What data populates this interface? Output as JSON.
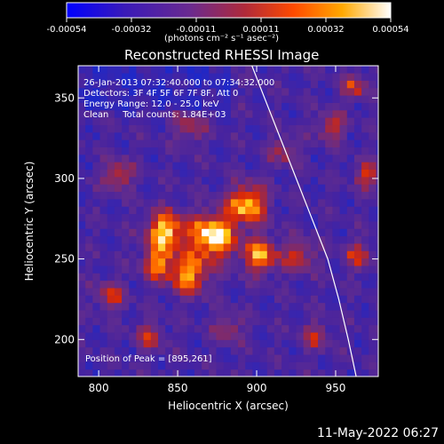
{
  "colorbar": {
    "tick_labels": [
      "-0.00054",
      "-0.00032",
      "-0.00011",
      "0.00011",
      "0.00032",
      "0.00054"
    ],
    "min": -0.00054,
    "max": 0.00054,
    "unit_label": "(photons cm⁻² s⁻¹ asec⁻²)",
    "colors": [
      "#0000ff",
      "#4a1aa0",
      "#7a2a8a",
      "#c0301a",
      "#ff6a00",
      "#ffc000",
      "#ffffff"
    ]
  },
  "chart_data": {
    "type": "heatmap",
    "title": "Reconstructed RHESSI Image",
    "xlabel": "Heliocentric X (arcsec)",
    "ylabel": "Heliocentric Y (arcsec)",
    "xlim": [
      787,
      977
    ],
    "ylim": [
      177,
      370
    ],
    "xticks": [
      800,
      850,
      900,
      950
    ],
    "yticks": [
      200,
      250,
      300,
      350
    ],
    "peak_position": [
      895,
      261
    ],
    "limb_curve": [
      [
        897,
        370
      ],
      [
        905,
        350
      ],
      [
        915,
        325
      ],
      [
        925,
        300
      ],
      [
        935,
        275
      ],
      [
        945,
        250
      ],
      [
        952,
        225
      ],
      [
        958,
        200
      ],
      [
        963,
        177
      ]
    ],
    "annotations": [
      "26-Jan-2013 07:32:40.000 to 07:34:32.000",
      "Detectors: 3F 4F 5F 6F 7F 8F, Att 0",
      "Energy Range: 12.0 - 25.0 keV",
      "Clean     Total counts: 1.84E+03",
      "Position of Peak = [895,261]"
    ]
  },
  "footer": {
    "timestamp": "11-May-2022 06:27"
  }
}
